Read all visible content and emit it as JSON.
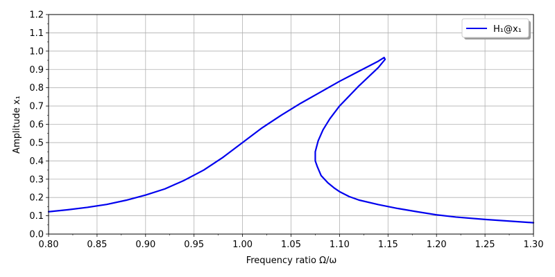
{
  "chart_data": {
    "type": "line",
    "xlabel": "Frequency ratio Ω/ω",
    "ylabel": "Amplitude x₁",
    "xlim": [
      0.8,
      1.3
    ],
    "ylim": [
      0.0,
      1.2
    ],
    "x_ticks": [
      0.8,
      0.85,
      0.9,
      0.95,
      1.0,
      1.05,
      1.1,
      1.15,
      1.2,
      1.25,
      1.3
    ],
    "x_tick_labels": [
      "0.80",
      "0.85",
      "0.90",
      "0.95",
      "1.00",
      "1.05",
      "1.10",
      "1.15",
      "1.20",
      "1.25",
      "1.30"
    ],
    "y_ticks": [
      0.0,
      0.1,
      0.2,
      0.3,
      0.4,
      0.5,
      0.6,
      0.7,
      0.8,
      0.9,
      1.0,
      1.1,
      1.2
    ],
    "y_tick_labels": [
      "0.0",
      "0.1",
      "0.2",
      "0.3",
      "0.4",
      "0.5",
      "0.6",
      "0.7",
      "0.8",
      "0.9",
      "1.0",
      "1.1",
      "1.2"
    ],
    "grid": true,
    "legend": {
      "placement": "top-right",
      "entries": [
        "H₁@x₁"
      ]
    },
    "series": [
      {
        "name": "H₁@x₁",
        "color": "#0000ee",
        "points": [
          [
            0.8,
            0.122
          ],
          [
            0.82,
            0.133
          ],
          [
            0.84,
            0.146
          ],
          [
            0.86,
            0.162
          ],
          [
            0.88,
            0.185
          ],
          [
            0.9,
            0.213
          ],
          [
            0.92,
            0.247
          ],
          [
            0.94,
            0.294
          ],
          [
            0.96,
            0.35
          ],
          [
            0.98,
            0.42
          ],
          [
            1.0,
            0.5
          ],
          [
            1.02,
            0.58
          ],
          [
            1.04,
            0.65
          ],
          [
            1.06,
            0.715
          ],
          [
            1.08,
            0.775
          ],
          [
            1.1,
            0.835
          ],
          [
            1.12,
            0.89
          ],
          [
            1.14,
            0.945
          ],
          [
            1.146,
            0.965
          ],
          [
            1.147,
            0.955
          ],
          [
            1.14,
            0.91
          ],
          [
            1.12,
            0.81
          ],
          [
            1.11,
            0.755
          ],
          [
            1.1,
            0.7
          ],
          [
            1.09,
            0.63
          ],
          [
            1.083,
            0.57
          ],
          [
            1.078,
            0.51
          ],
          [
            1.075,
            0.45
          ],
          [
            1.075,
            0.4
          ],
          [
            1.077,
            0.37
          ],
          [
            1.081,
            0.32
          ],
          [
            1.088,
            0.28
          ],
          [
            1.095,
            0.25
          ],
          [
            1.1,
            0.232
          ],
          [
            1.11,
            0.205
          ],
          [
            1.12,
            0.186
          ],
          [
            1.14,
            0.161
          ],
          [
            1.16,
            0.14
          ],
          [
            1.18,
            0.122
          ],
          [
            1.2,
            0.105
          ],
          [
            1.22,
            0.093
          ],
          [
            1.25,
            0.08
          ],
          [
            1.28,
            0.069
          ],
          [
            1.3,
            0.062
          ]
        ]
      }
    ]
  }
}
